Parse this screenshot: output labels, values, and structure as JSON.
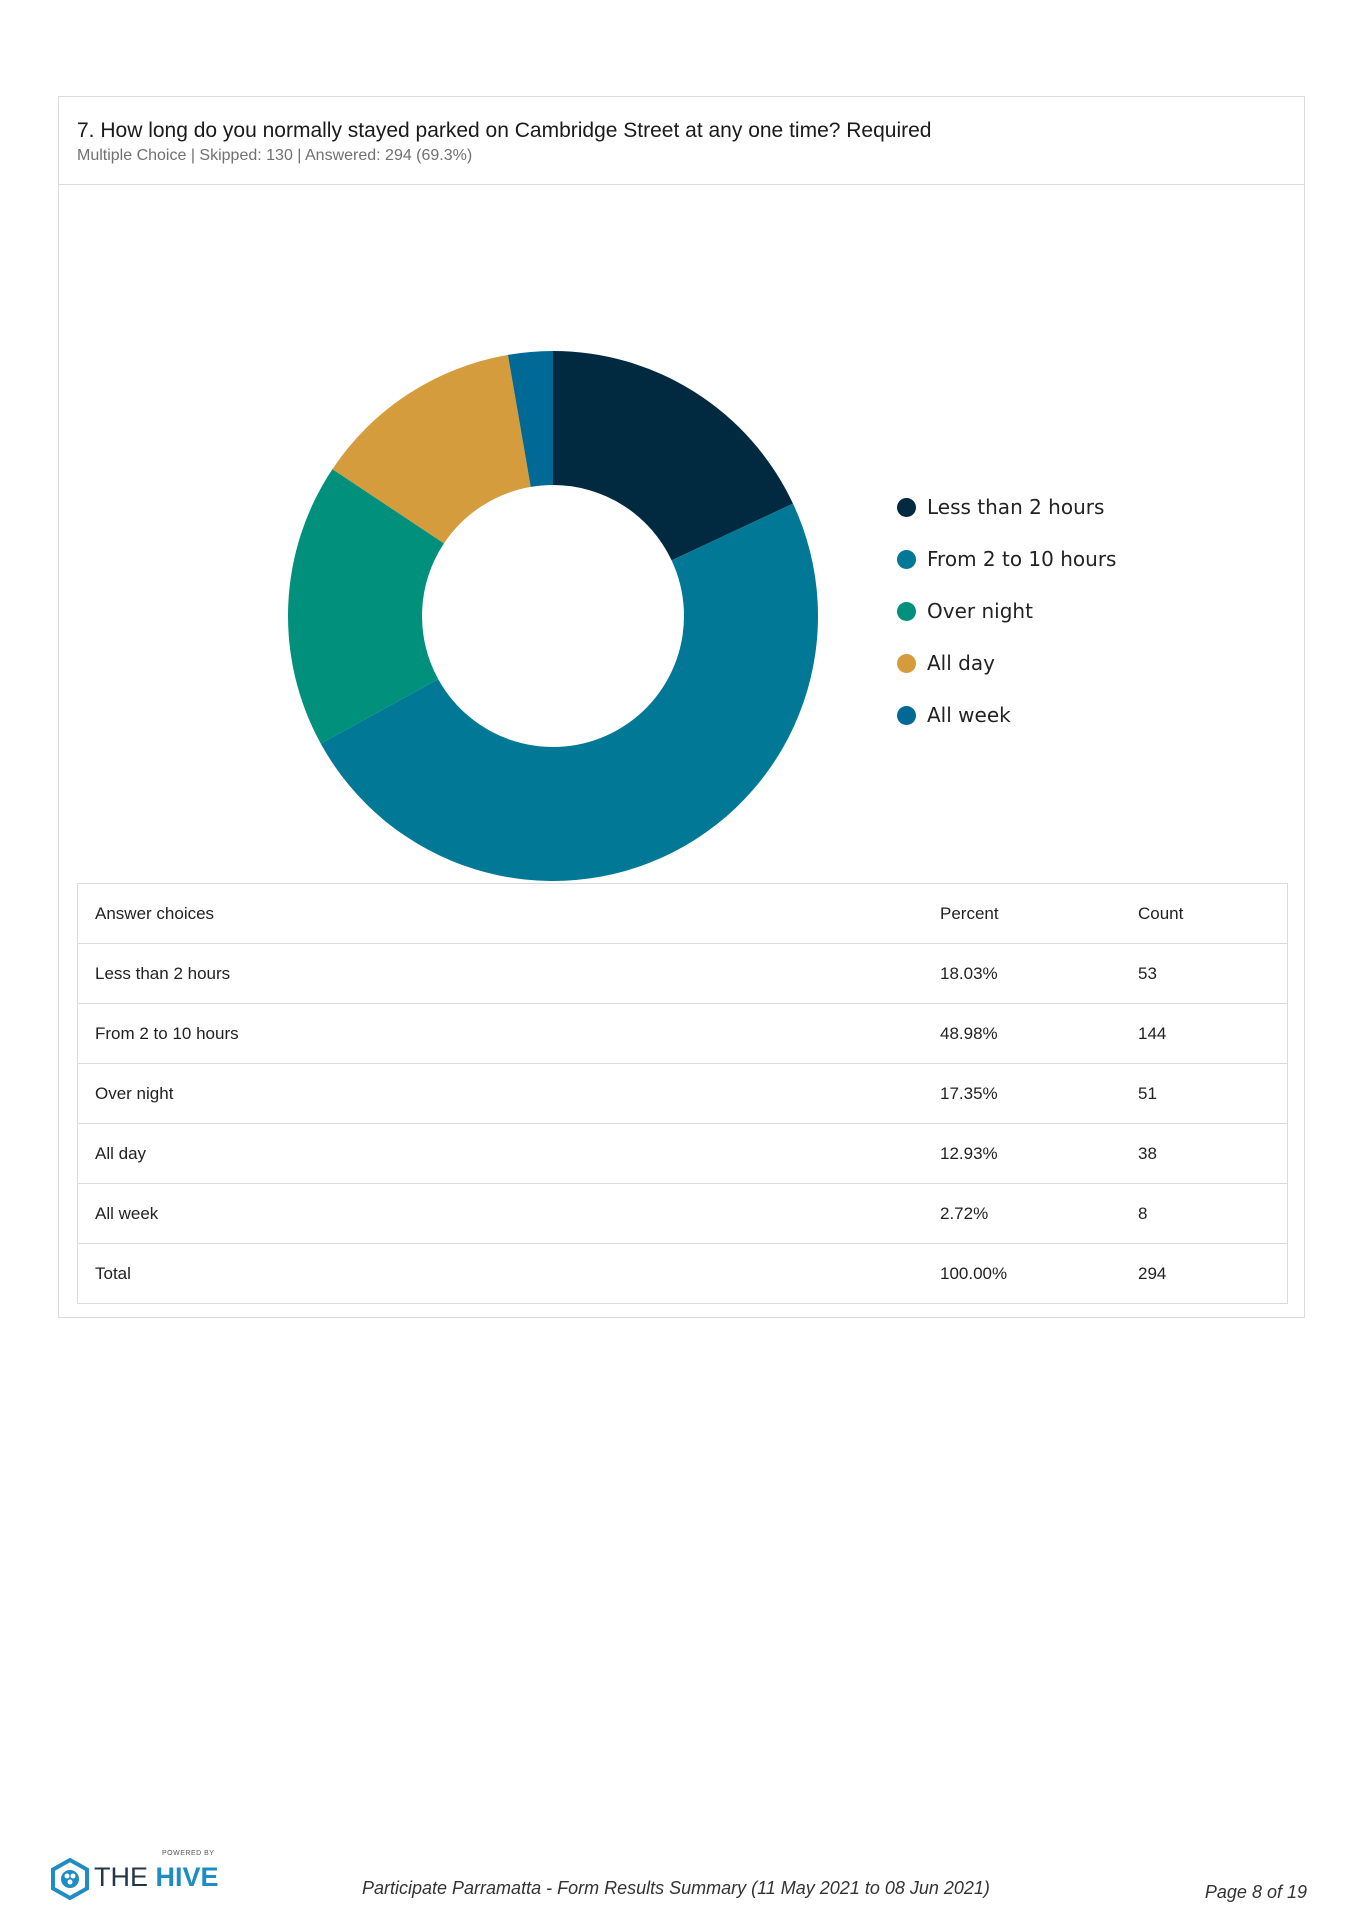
{
  "question": {
    "title": "7. How long do you normally stayed parked on Cambridge Street at any one time? Required",
    "meta": "Multiple Choice | Skipped: 130 | Answered: 294 (69.3%)"
  },
  "chart_data": {
    "type": "pie",
    "donut": true,
    "legend_position": "right",
    "series": [
      {
        "name": "Less than 2 hours",
        "value": 18.03,
        "color": "#012a40"
      },
      {
        "name": "From 2 to 10 hours",
        "value": 48.98,
        "color": "#017896"
      },
      {
        "name": "Over night",
        "value": 17.35,
        "color": "#01907b"
      },
      {
        "name": "All day",
        "value": 12.93,
        "color": "#d49c3c"
      },
      {
        "name": "All week",
        "value": 2.72,
        "color": "#016996"
      }
    ]
  },
  "table": {
    "headers": [
      "Answer choices",
      "Percent",
      "Count"
    ],
    "rows": [
      [
        "Less than 2 hours",
        "18.03%",
        "53"
      ],
      [
        "From 2 to 10 hours",
        "48.98%",
        "144"
      ],
      [
        "Over night",
        "17.35%",
        "51"
      ],
      [
        "All day",
        "12.93%",
        "38"
      ],
      [
        "All week",
        "2.72%",
        "8"
      ],
      [
        "Total",
        "100.00%",
        "294"
      ]
    ]
  },
  "footer": {
    "logo_powered": "POWERED BY",
    "logo_the": "THE",
    "logo_hive": "HIVE",
    "center": "Participate Parramatta - Form Results Summary (11 May 2021 to 08 Jun 2021)",
    "page": "Page 8 of 19"
  }
}
